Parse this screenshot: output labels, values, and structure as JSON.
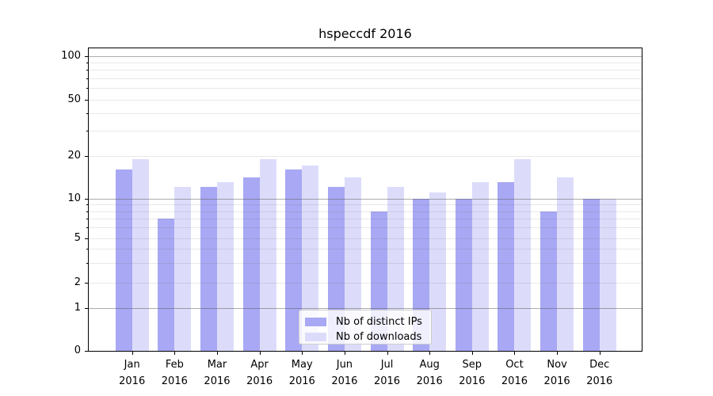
{
  "figure": {
    "title": "hspeccdf 2016"
  },
  "chart_data": {
    "type": "bar",
    "title": "hspeccdf 2016",
    "categories": [
      "Jan",
      "Feb",
      "Mar",
      "Apr",
      "May",
      "Jun",
      "Jul",
      "Aug",
      "Sep",
      "Oct",
      "Nov",
      "Dec"
    ],
    "category_year": "2016",
    "series": [
      {
        "name": "Nb of distinct IPs",
        "key": "distinct-ips",
        "color": "#a8a8f4",
        "values": [
          16,
          7,
          12,
          14,
          16,
          12,
          8,
          10,
          10,
          13,
          8,
          10
        ]
      },
      {
        "name": "Nb of downloads",
        "key": "downloads",
        "color": "#dcdcfa",
        "values": [
          19,
          12,
          13,
          19,
          17,
          14,
          12,
          11,
          13,
          19,
          14,
          10
        ]
      }
    ],
    "yticks": [
      0,
      1,
      2,
      5,
      10,
      20,
      50,
      100
    ],
    "yscale": "log-like (linear below 1)",
    "grid": true,
    "legend_position": "lower center",
    "major_grid_values": [
      1,
      10,
      100
    ],
    "minor_grid_values": [
      3,
      4,
      6,
      7,
      8,
      9,
      30,
      40,
      60,
      70,
      80,
      90
    ]
  }
}
